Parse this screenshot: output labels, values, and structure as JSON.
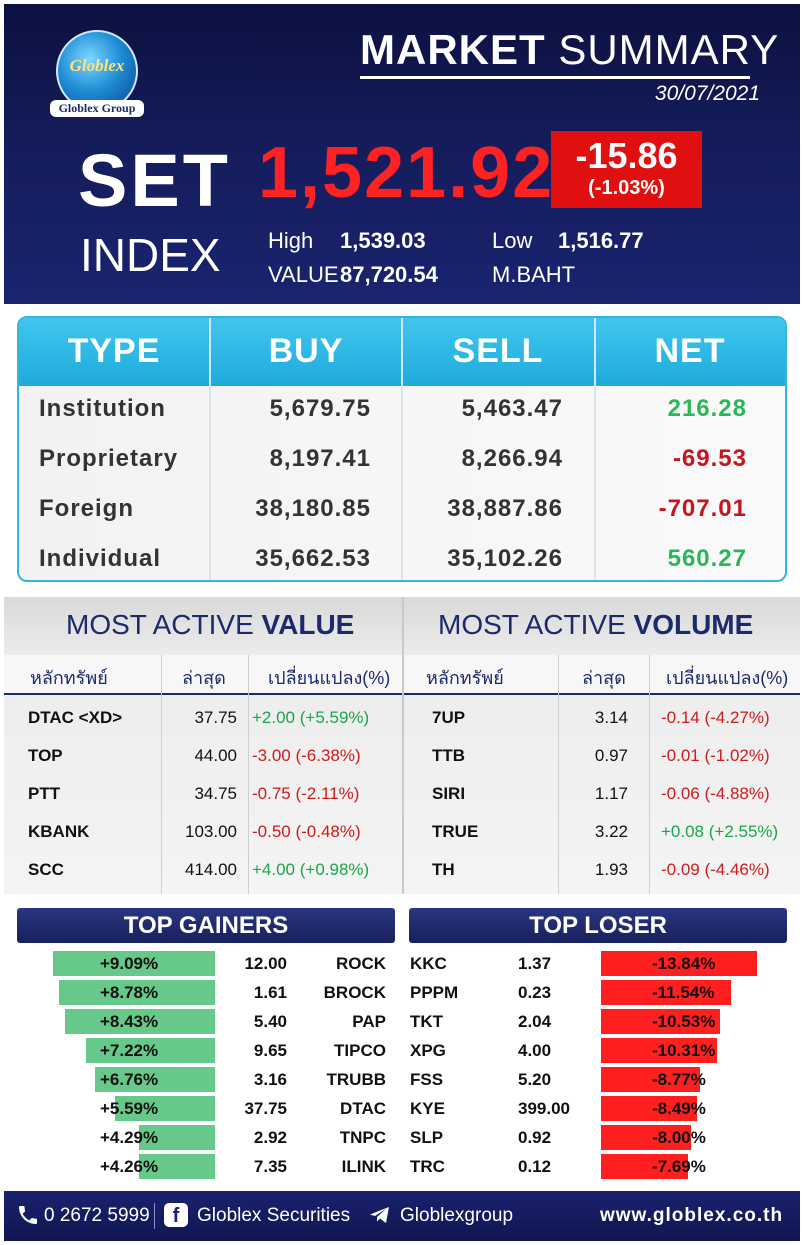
{
  "brand": {
    "logo_text": "Globlex",
    "group_text": "Globlex Group"
  },
  "header": {
    "title_bold": "MARKET",
    "title_rest": " SUMMARY",
    "date": "30/07/2021",
    "set_label": "SET",
    "index_label": "INDEX",
    "set_value": "1,521.92",
    "change": "-15.86",
    "change_pct": "(-1.03%)",
    "high_label": "High",
    "high_value": "1,539.03",
    "low_label": "Low",
    "low_value": "1,516.77",
    "value_label": "VALUE",
    "value_amount": "87,720.54",
    "value_unit": "M.BAHT"
  },
  "investor_flow": {
    "headers": [
      "TYPE",
      "BUY",
      "SELL",
      "NET"
    ],
    "rows": [
      {
        "type": "Institution",
        "buy": "5,679.75",
        "sell": "5,463.47",
        "net": "216.28",
        "dir": "up"
      },
      {
        "type": "Proprietary",
        "buy": "8,197.41",
        "sell": "8,266.94",
        "net": "-69.53",
        "dir": "down"
      },
      {
        "type": "Foreign",
        "buy": "38,180.85",
        "sell": "38,887.86",
        "net": "-707.01",
        "dir": "down"
      },
      {
        "type": "Individual",
        "buy": "35,662.53",
        "sell": "35,102.26",
        "net": "560.27",
        "dir": "up"
      }
    ],
    "colors": {
      "up": "#2bb65a",
      "down": "#c8141e",
      "header": "#1eaadc"
    }
  },
  "most_active_value": {
    "title_light": "MOST ACTIVE ",
    "title_bold": "VALUE",
    "headers": [
      "หลักทรัพย์",
      "ล่าสุด",
      "เปลี่ยนแปลง(%)"
    ],
    "rows": [
      {
        "symbol": "DTAC <XD>",
        "last": "37.75",
        "change": "+2.00 (+5.59%)",
        "dir": "up"
      },
      {
        "symbol": "TOP",
        "last": "44.00",
        "change": "-3.00 (-6.38%)",
        "dir": "down"
      },
      {
        "symbol": "PTT",
        "last": "34.75",
        "change": "-0.75 (-2.11%)",
        "dir": "down"
      },
      {
        "symbol": "KBANK",
        "last": "103.00",
        "change": "-0.50 (-0.48%)",
        "dir": "down"
      },
      {
        "symbol": "SCC",
        "last": "414.00",
        "change": "+4.00 (+0.98%)",
        "dir": "up"
      }
    ]
  },
  "most_active_volume": {
    "title_light": "MOST ACTIVE ",
    "title_bold": "VOLUME",
    "headers": [
      "หลักทรัพย์",
      "ล่าสุด",
      "เปลี่ยนแปลง(%)"
    ],
    "rows": [
      {
        "symbol": "7UP",
        "last": "3.14",
        "change": "-0.14 (-4.27%)",
        "dir": "down"
      },
      {
        "symbol": "TTB",
        "last": "0.97",
        "change": "-0.01 (-1.02%)",
        "dir": "down"
      },
      {
        "symbol": "SIRI",
        "last": "1.17",
        "change": "-0.06 (-4.88%)",
        "dir": "down"
      },
      {
        "symbol": "TRUE",
        "last": "3.22",
        "change": "+0.08 (+2.55%)",
        "dir": "up"
      },
      {
        "symbol": "TH",
        "last": "1.93",
        "change": "-0.09 (-4.46%)",
        "dir": "down"
      }
    ]
  },
  "top_gainers": {
    "title": "TOP GAINERS",
    "rows": [
      {
        "pct": "+9.09%",
        "pct_value": 9.09,
        "price": "12.00",
        "symbol": "ROCK"
      },
      {
        "pct": "+8.78%",
        "pct_value": 8.78,
        "price": "1.61",
        "symbol": "BROCK"
      },
      {
        "pct": "+8.43%",
        "pct_value": 8.43,
        "price": "5.40",
        "symbol": "PAP"
      },
      {
        "pct": "+7.22%",
        "pct_value": 7.22,
        "price": "9.65",
        "symbol": "TIPCO"
      },
      {
        "pct": "+6.76%",
        "pct_value": 6.76,
        "price": "3.16",
        "symbol": "TRUBB"
      },
      {
        "pct": "+5.59%",
        "pct_value": 5.59,
        "price": "37.75",
        "symbol": "DTAC"
      },
      {
        "pct": "+4.29%",
        "pct_value": 4.29,
        "price": "2.92",
        "symbol": "TNPC"
      },
      {
        "pct": "+4.26%",
        "pct_value": 4.26,
        "price": "7.35",
        "symbol": "ILINK"
      }
    ]
  },
  "top_loser": {
    "title": "TOP LOSER",
    "rows": [
      {
        "symbol": "KKC",
        "price": "1.37",
        "pct": "-13.84%",
        "pct_value": 13.84
      },
      {
        "symbol": "PPPM",
        "price": "0.23",
        "pct": "-11.54%",
        "pct_value": 11.54
      },
      {
        "symbol": "TKT",
        "price": "2.04",
        "pct": "-10.53%",
        "pct_value": 10.53
      },
      {
        "symbol": "XPG",
        "price": "4.00",
        "pct": "-10.31%",
        "pct_value": 10.31
      },
      {
        "symbol": "FSS",
        "price": "5.20",
        "pct": "-8.77%",
        "pct_value": 8.77
      },
      {
        "symbol": "KYE",
        "price": "399.00",
        "pct": "-8.49%",
        "pct_value": 8.49
      },
      {
        "symbol": "SLP",
        "price": "0.92",
        "pct": "-8.00%",
        "pct_value": 8.0
      },
      {
        "symbol": "TRC",
        "price": "0.12",
        "pct": "-7.69%",
        "pct_value": 7.69
      }
    ]
  },
  "footer": {
    "phone": "0 2672 5999",
    "facebook": "Globlex Securities",
    "telegram": "Globlexgroup",
    "website": "www.globlex.co.th",
    "icons": [
      "phone-icon",
      "facebook-icon",
      "telegram-icon"
    ]
  }
}
